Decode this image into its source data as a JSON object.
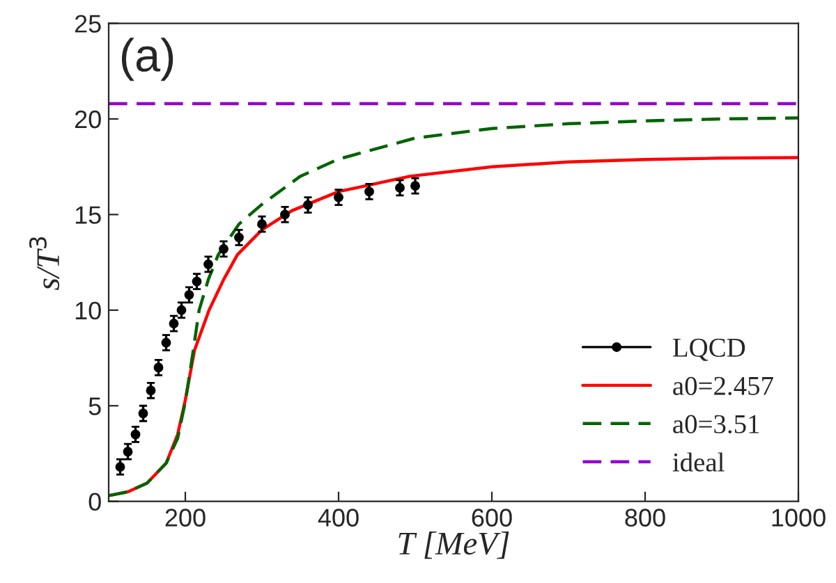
{
  "chart_data": {
    "type": "line",
    "xlabel": "T [MeV]",
    "ylabel": "s/T$^{3}$",
    "xlim": [
      100,
      1000
    ],
    "xticks": [
      200,
      400,
      600,
      800,
      1000
    ],
    "ylim": [
      0,
      25
    ],
    "yticks": [
      0,
      5,
      10,
      15,
      20,
      25
    ],
    "legend": "bottom right",
    "grid": false,
    "annotations": [
      "(a)"
    ],
    "series": [
      {
        "name": "LQCD",
        "type": "scatter",
        "marker": "circle",
        "color": "#000000",
        "x": [
          115,
          125,
          135,
          145,
          155,
          165,
          175,
          185,
          195,
          205,
          215,
          230,
          250,
          270,
          300,
          330,
          360,
          400,
          440,
          480,
          500
        ],
        "values": [
          1.8,
          2.6,
          3.5,
          4.6,
          5.8,
          7.0,
          8.3,
          9.3,
          10.0,
          10.8,
          11.5,
          12.4,
          13.2,
          13.8,
          14.5,
          15.0,
          15.5,
          15.9,
          16.2,
          16.4,
          16.5
        ],
        "errors": [
          0.4,
          0.4,
          0.4,
          0.4,
          0.4,
          0.4,
          0.4,
          0.4,
          0.4,
          0.4,
          0.4,
          0.4,
          0.4,
          0.4,
          0.4,
          0.4,
          0.4,
          0.4,
          0.4,
          0.4,
          0.4
        ]
      },
      {
        "name": "a0=2.457",
        "line_style": "solid",
        "color": "#ff0000",
        "x": [
          100,
          125,
          150,
          175,
          190,
          200,
          212,
          231,
          250,
          268,
          300,
          339,
          400,
          493,
          600,
          700,
          800,
          900,
          1000
        ],
        "values": [
          0.3,
          0.5,
          0.95,
          2.0,
          3.5,
          5.3,
          7.9,
          10.0,
          11.6,
          12.9,
          14.2,
          15.2,
          16.2,
          17.0,
          17.5,
          17.75,
          17.88,
          17.95,
          17.98
        ]
      },
      {
        "name": "a0=3.51",
        "line_style": "dashed",
        "color": "#006400",
        "x": [
          100,
          125,
          150,
          175,
          190,
          200,
          210,
          218,
          230,
          243,
          270,
          299,
          350,
          400,
          500,
          600,
          700,
          800,
          900,
          1000
        ],
        "values": [
          0.3,
          0.5,
          0.95,
          2.0,
          3.3,
          5.2,
          7.8,
          10.0,
          11.6,
          12.9,
          14.5,
          15.5,
          17.0,
          17.9,
          19.0,
          19.5,
          19.75,
          19.9,
          20.0,
          20.05
        ]
      },
      {
        "name": "ideal",
        "line_style": "dashed",
        "color": "#9400d3",
        "x": [
          100,
          1000
        ],
        "values": [
          20.8,
          20.8
        ]
      }
    ]
  }
}
